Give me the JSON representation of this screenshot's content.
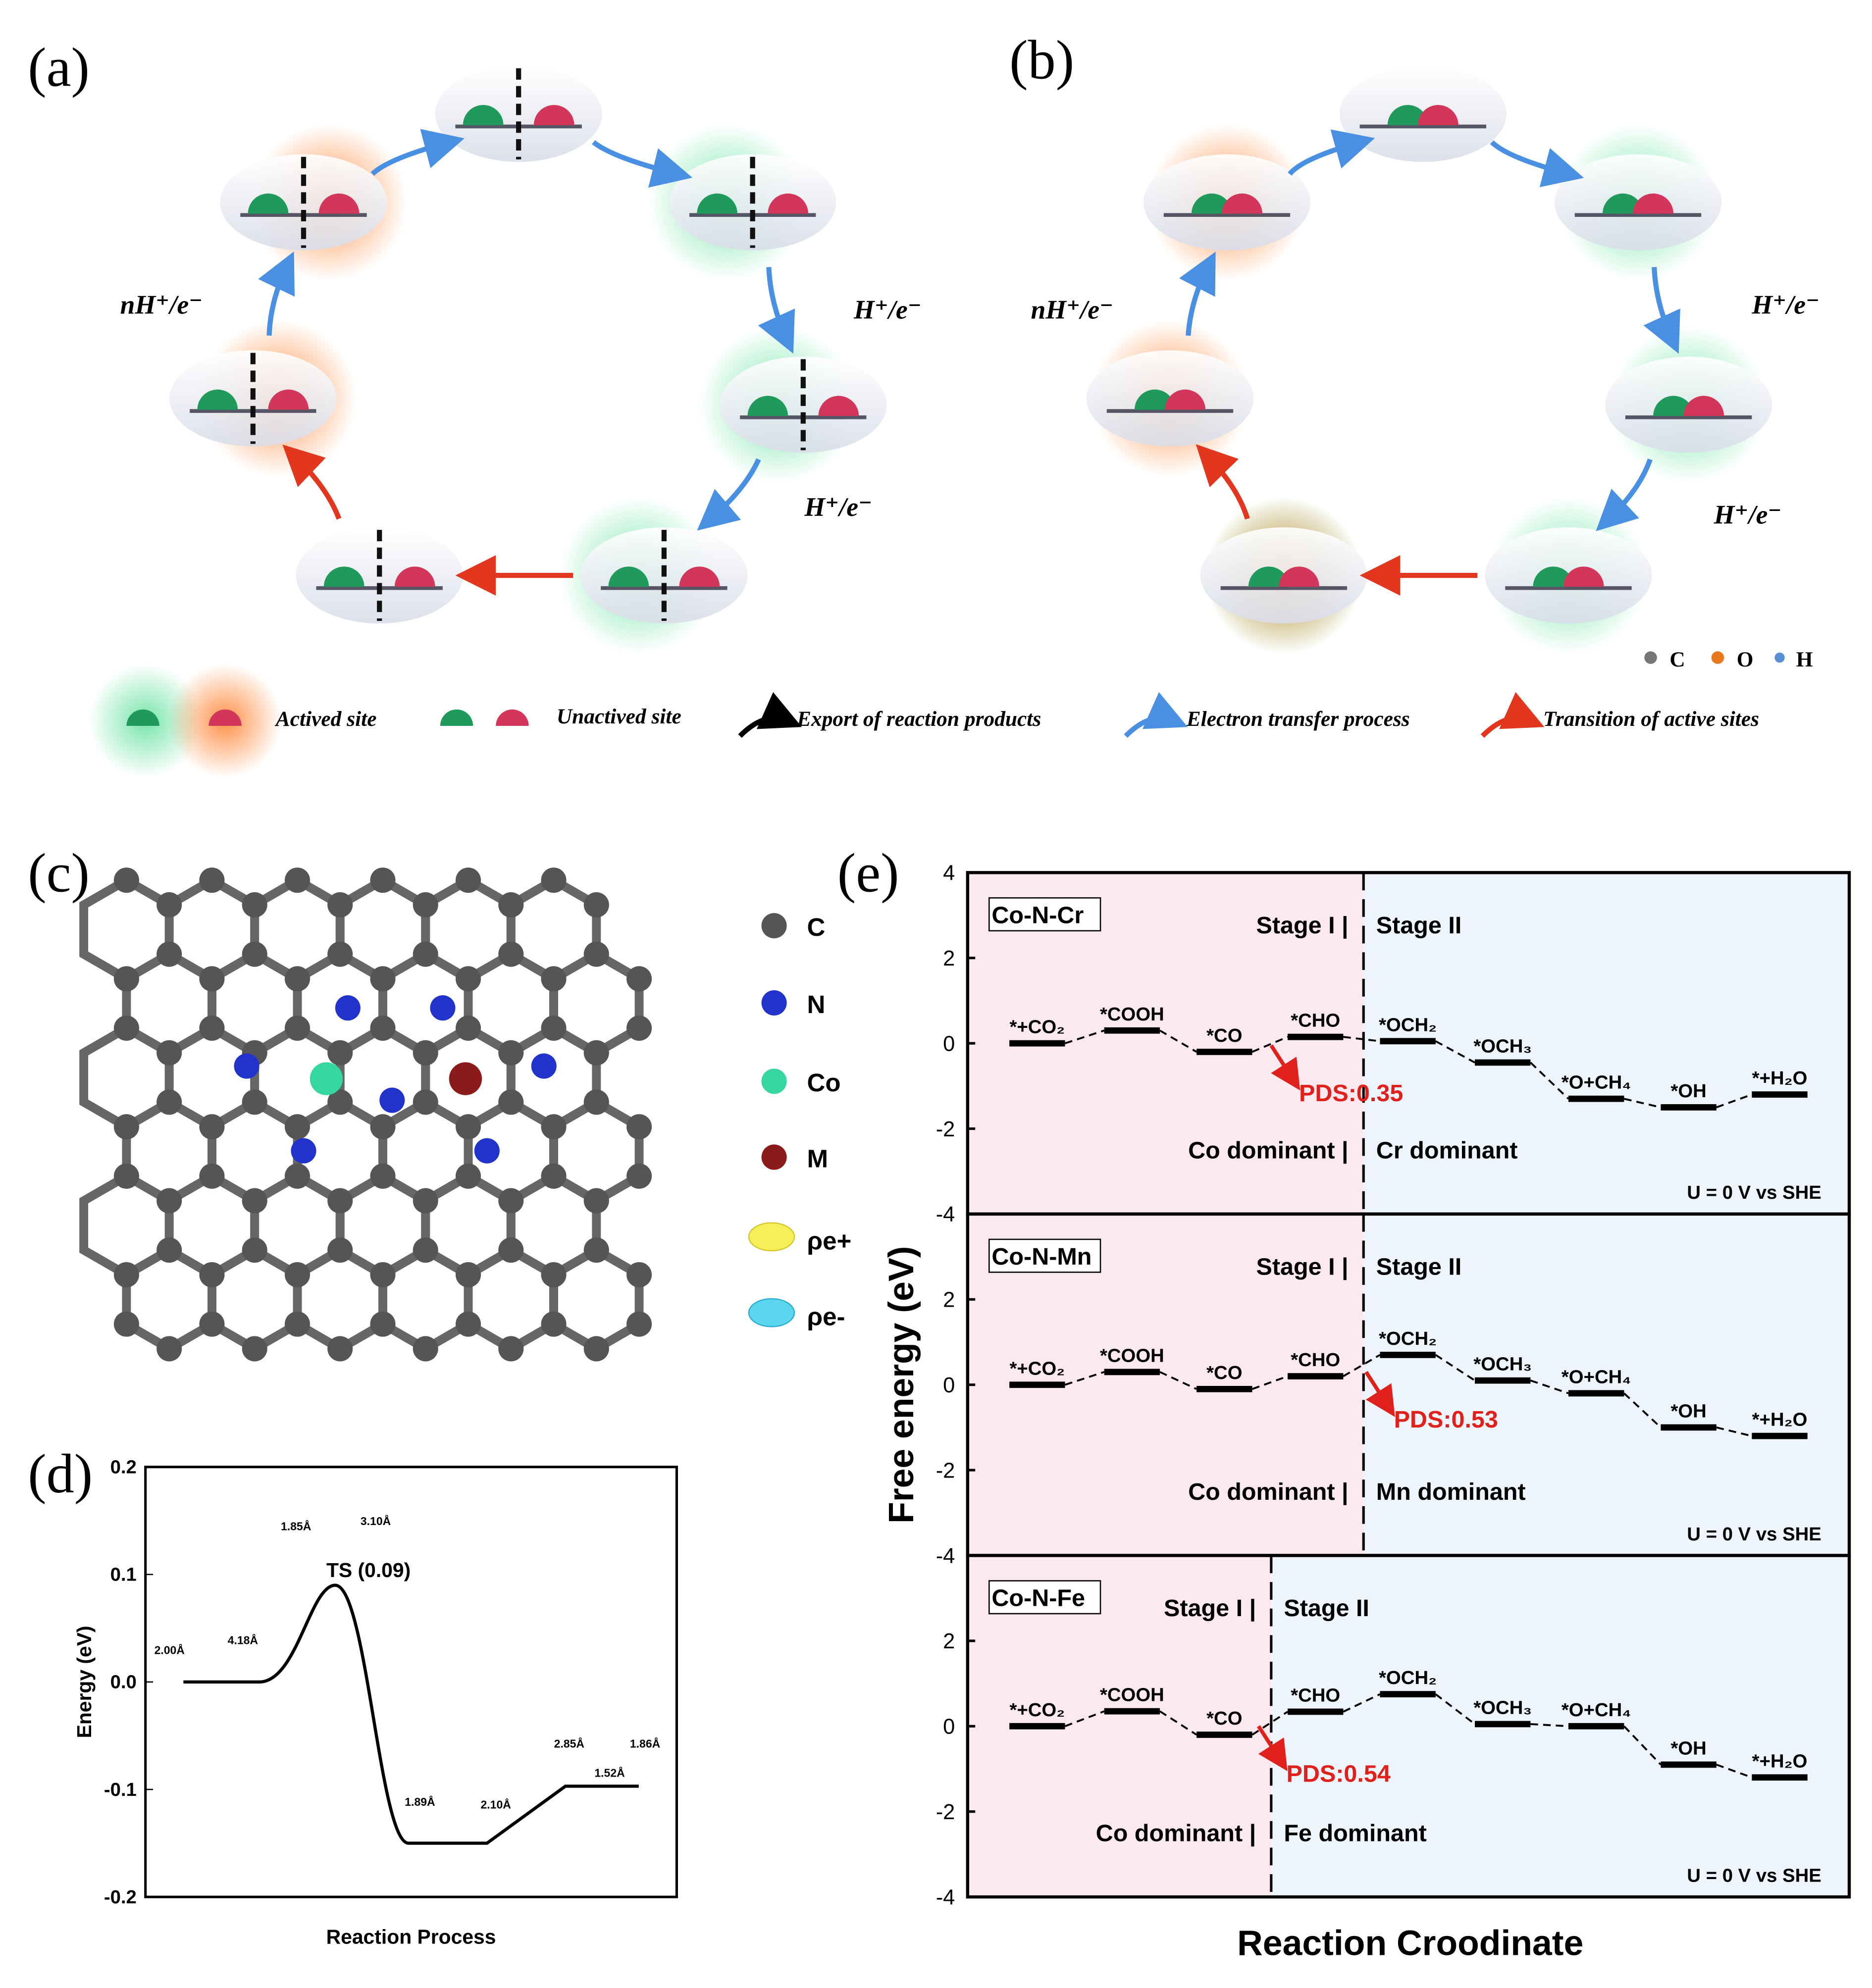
{
  "panels": {
    "a": {
      "label": "(a)",
      "steps": [
        "nH⁺/e⁻",
        "H⁺/e⁻",
        "H⁺/e⁻"
      ],
      "node_states": [
        "none",
        "green",
        "green",
        "green",
        "none",
        "orange",
        "orange"
      ]
    },
    "b": {
      "label": "(b)",
      "steps": [
        "nH⁺/e⁻",
        "H⁺/e⁻",
        "H⁺/e⁻"
      ],
      "node_states": [
        "none",
        "green",
        "green",
        "green",
        "mixed",
        "orange",
        "orange"
      ]
    },
    "c": {
      "label": "(c)",
      "legend": [
        "C",
        "N",
        "Co",
        "M",
        "ρe+",
        "ρe-"
      ]
    },
    "d": {
      "label": "(d)"
    },
    "e": {
      "label": "(e)"
    }
  },
  "atom_legend": [
    "C",
    "O",
    "H"
  ],
  "legend": {
    "actived": "Actived site",
    "unactived": "Unactived site",
    "export": "Export of reaction products",
    "electron": "Electron transfer process",
    "transition": "Transition of active sites"
  },
  "colors": {
    "co_site": "#1f9a5a",
    "metal_site": "#d2365a",
    "green_glow": "#6fe3a6",
    "orange_glow": "#ff8a3d",
    "electron_arrow": "#4a90e2",
    "transition_arrow": "#e2361f",
    "carbon": "#555555",
    "nitrogen": "#2233cc",
    "cobalt": "#35d6a0",
    "metal": "#8b1a1a",
    "pds": "#e0201b",
    "stage1_bg": "#fbe9ef",
    "stage2_bg": "#eef4fb"
  },
  "chart_data": [
    {
      "type": "line",
      "panel": "d",
      "xlabel": "Reaction Process",
      "ylabel": "Energy (eV)",
      "ylim": [
        -0.2,
        0.2
      ],
      "yticks": [
        "0.2",
        "0.1",
        "0.0",
        "-0.1",
        "-0.2"
      ],
      "levels": [
        0.0,
        0.09,
        -0.15,
        -0.097
      ],
      "annotations": [
        "TS (0.09)"
      ],
      "bond_labels": [
        [
          "2.00Å",
          "4.18Å"
        ],
        [
          "1.85Å",
          "3.10Å"
        ],
        [
          "1.89Å",
          "2.10Å"
        ],
        [
          "2.85Å",
          "1.86Å",
          "1.52Å"
        ]
      ]
    },
    {
      "type": "line",
      "panel": "e",
      "xlabel": "Reaction Croodinate",
      "ylabel": "Free energy (eV)",
      "ylim": [
        -4,
        4
      ],
      "yticks": [
        "4",
        "2",
        "0",
        "-2",
        "-4"
      ],
      "condition": "U = 0 V vs SHE",
      "subplots": [
        {
          "name": "Co-N-Cr",
          "stage1": "Stage I",
          "stage2": "Stage II",
          "dom1": "Co dominant",
          "dom2": "Cr dominant",
          "pds": "PDS:0.35",
          "split_after": 4,
          "steps": [
            "*+CO₂",
            "*COOH",
            "*CO",
            "*CHO",
            "*OCH₂",
            "*OCH₃",
            "*O+CH₄",
            "*OH",
            "*+H₂O"
          ],
          "values": [
            0.0,
            0.3,
            -0.2,
            0.15,
            0.05,
            -0.45,
            -1.3,
            -1.5,
            -1.2
          ]
        },
        {
          "name": "Co-N-Mn",
          "stage1": "Stage I",
          "stage2": "Stage II",
          "dom1": "Co dominant",
          "dom2": "Mn dominant",
          "pds": "PDS:0.53",
          "split_after": 4,
          "steps": [
            "*+CO₂",
            "*COOH",
            "*CO",
            "*CHO",
            "*OCH₂",
            "*OCH₃",
            "*O+CH₄",
            "*OH",
            "*+H₂O"
          ],
          "values": [
            0.0,
            0.3,
            -0.1,
            0.2,
            0.7,
            0.1,
            -0.2,
            -1.0,
            -1.2
          ]
        },
        {
          "name": "Co-N-Fe",
          "stage1": "Stage I",
          "stage2": "Stage II",
          "dom1": "Co dominant",
          "dom2": "Fe dominant",
          "pds": "PDS:0.54",
          "split_after": 3,
          "steps": [
            "*+CO₂",
            "*COOH",
            "*CO",
            "*CHO",
            "*OCH₂",
            "*OCH₃",
            "*O+CH₄",
            "*OH",
            "*+H₂O"
          ],
          "values": [
            0.0,
            0.35,
            -0.2,
            0.34,
            0.75,
            0.05,
            0.0,
            -0.9,
            -1.2
          ]
        }
      ]
    }
  ]
}
